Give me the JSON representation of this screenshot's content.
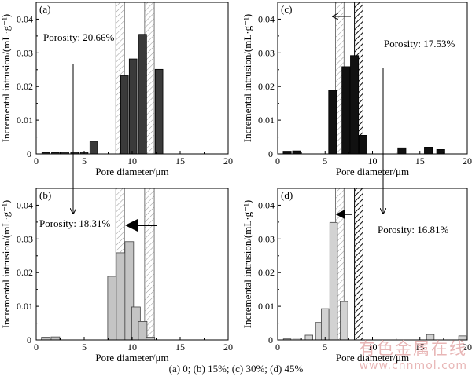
{
  "caption": "(a) 0; (b) 15%; (c) 30%; (d) 45%",
  "watermark": {
    "text": "有色金属在线",
    "url": "www.cnnmol.com"
  },
  "colors": {
    "a": "#3a3a3a",
    "b": "#c4c4c4",
    "c": "#111111",
    "d": "#d2d2d2",
    "axis": "#000000"
  },
  "chart_data": [
    {
      "id": "a",
      "type": "bar",
      "panel_label": "(a)",
      "xlabel": "Pore diameter/μm",
      "ylabel": "Incremental intrusion/(mL·g⁻¹)",
      "xlim": [
        0,
        20
      ],
      "ylim": [
        0,
        0.045
      ],
      "xticks": [
        "0",
        "5",
        "10",
        "15",
        "20"
      ],
      "yticks": [
        "0.01",
        "0.02",
        "0.03",
        "0.04"
      ],
      "annotation": "Porosity: 20.66%",
      "bar_width": 0.8,
      "bars": [
        {
          "x": 1.0,
          "y": 0.0004
        },
        {
          "x": 2.0,
          "y": 0.0004
        },
        {
          "x": 3.0,
          "y": 0.0005
        },
        {
          "x": 4.0,
          "y": 0.0005
        },
        {
          "x": 5.0,
          "y": 0.0005
        },
        {
          "x": 6.0,
          "y": 0.0036
        },
        {
          "x": 9.2,
          "y": 0.0232
        },
        {
          "x": 10.1,
          "y": 0.0282
        },
        {
          "x": 11.1,
          "y": 0.0355
        },
        {
          "x": 12.8,
          "y": 0.0251
        }
      ],
      "hatch_bands": [
        [
          8.3,
          9.2
        ],
        [
          11.3,
          12.3
        ]
      ]
    },
    {
      "id": "b",
      "type": "bar",
      "panel_label": "(b)",
      "xlabel": "Pore diameter/μm",
      "ylabel": "Incremental intrusion/(mL·g⁻¹)",
      "xlim": [
        0,
        20
      ],
      "ylim": [
        0,
        0.045
      ],
      "xticks": [
        "0",
        "5",
        "10",
        "15",
        "20"
      ],
      "yticks": [
        "0.01",
        "0.02",
        "0.03",
        "0.04"
      ],
      "annotation": "Porosity: 18.31%",
      "bar_width": 0.9,
      "bars": [
        {
          "x": 1.0,
          "y": 0.0008
        },
        {
          "x": 2.0,
          "y": 0.0009
        },
        {
          "x": 7.9,
          "y": 0.0189
        },
        {
          "x": 8.8,
          "y": 0.0259
        },
        {
          "x": 9.7,
          "y": 0.0292
        },
        {
          "x": 10.4,
          "y": 0.0098
        },
        {
          "x": 11.1,
          "y": 0.0055
        },
        {
          "x": 11.9,
          "y": 0.0008
        }
      ],
      "hatch_bands": [
        [
          8.3,
          9.2
        ],
        [
          11.3,
          12.3
        ]
      ]
    },
    {
      "id": "c",
      "type": "bar",
      "panel_label": "(c)",
      "xlabel": "Pore diameter/μm",
      "ylabel": "Incremental intrusion/(mL·g⁻¹)",
      "xlim": [
        0,
        20
      ],
      "ylim": [
        0,
        0.045
      ],
      "xticks": [
        "0",
        "5",
        "10",
        "15",
        "20"
      ],
      "yticks": [
        "0.01",
        "0.02",
        "0.03",
        "0.04"
      ],
      "annotation": "Porosity: 17.53%",
      "bar_width": 0.85,
      "bars": [
        {
          "x": 1.0,
          "y": 0.0008
        },
        {
          "x": 2.0,
          "y": 0.0009
        },
        {
          "x": 5.8,
          "y": 0.0189
        },
        {
          "x": 7.2,
          "y": 0.0259
        },
        {
          "x": 8.1,
          "y": 0.0292
        },
        {
          "x": 9.0,
          "y": 0.0055
        },
        {
          "x": 13.1,
          "y": 0.0018
        },
        {
          "x": 15.9,
          "y": 0.002
        },
        {
          "x": 17.2,
          "y": 0.0013
        }
      ],
      "hatch_bands": [
        [
          6.1,
          7.0
        ],
        [
          8.1,
          9.0
        ]
      ]
    },
    {
      "id": "d",
      "type": "bar",
      "panel_label": "(d)",
      "xlabel": "Pore diameter/μm",
      "ylabel": "Incremental intrusion/(mL·g⁻¹)",
      "xlim": [
        0,
        20
      ],
      "ylim": [
        0,
        0.045
      ],
      "xticks": [
        "0",
        "5",
        "10",
        "15",
        "20"
      ],
      "yticks": [
        "0.01",
        "0.02",
        "0.03",
        "0.04"
      ],
      "annotation": "Porosity: 16.81%",
      "bar_width": 0.8,
      "bars": [
        {
          "x": 1.0,
          "y": 0.0003
        },
        {
          "x": 2.0,
          "y": 0.0006
        },
        {
          "x": 3.3,
          "y": 0.0014
        },
        {
          "x": 4.4,
          "y": 0.0052
        },
        {
          "x": 5.0,
          "y": 0.0093
        },
        {
          "x": 5.9,
          "y": 0.0349
        },
        {
          "x": 7.0,
          "y": 0.0114
        },
        {
          "x": 16.1,
          "y": 0.0016
        },
        {
          "x": 19.5,
          "y": 0.0012
        }
      ],
      "hatch_bands": [
        [
          6.1,
          7.0
        ],
        [
          8.1,
          9.0
        ]
      ]
    }
  ]
}
